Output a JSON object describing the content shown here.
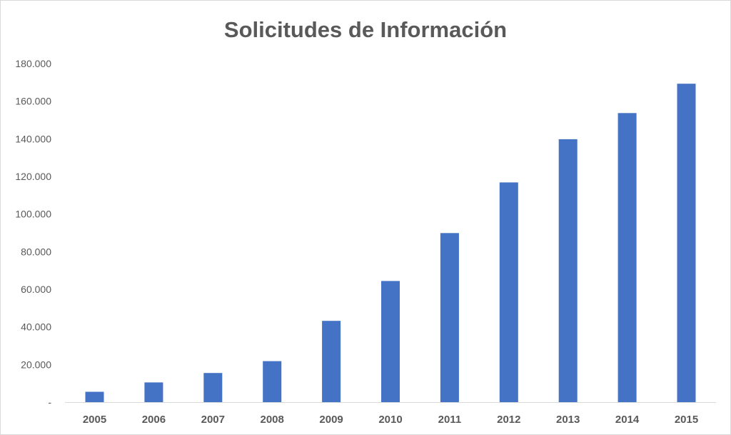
{
  "chart_data": {
    "type": "bar",
    "title": "Solicitudes de Información",
    "xlabel": "",
    "ylabel": "",
    "categories": [
      "2005",
      "2006",
      "2007",
      "2008",
      "2009",
      "2010",
      "2011",
      "2012",
      "2013",
      "2014",
      "2015"
    ],
    "values": [
      5500,
      10500,
      15500,
      21800,
      43200,
      64400,
      89900,
      116800,
      139800,
      153700,
      169300
    ],
    "ylim": [
      0,
      180000
    ],
    "y_ticks": [
      0,
      20000,
      40000,
      60000,
      80000,
      100000,
      120000,
      140000,
      160000,
      180000
    ],
    "y_tick_labels": [
      "-",
      "20.000",
      "40.000",
      "60.000",
      "80.000",
      "100.000",
      "120.000",
      "140.000",
      "160.000",
      "180.000"
    ],
    "grid": false,
    "legend": "none",
    "bar_color": "#4472c4",
    "text_color": "#595959",
    "axis_color": "#d9d9d9"
  }
}
